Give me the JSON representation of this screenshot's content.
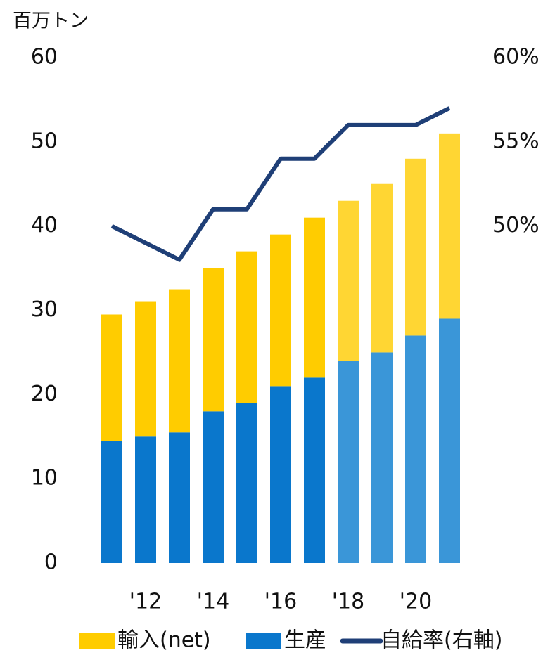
{
  "chart_data": {
    "type": "stacked-bar-line",
    "y_axis_label": "百万トン",
    "categories": [
      null,
      "'12",
      null,
      "'14",
      null,
      "'16",
      null,
      "'18",
      null,
      "'20",
      null
    ],
    "series": [
      {
        "name": "生産",
        "color": "#0a77cc",
        "colors": [
          "#0a77cc",
          "#0a77cc",
          "#0a77cc",
          "#0a77cc",
          "#0a77cc",
          "#0a77cc",
          "#0a77cc",
          "#3a96d8",
          "#3a96d8",
          "#3a96d8",
          "#3a96d8"
        ],
        "values": [
          14.5,
          15,
          15.5,
          18,
          19,
          21,
          22,
          24,
          25,
          27,
          29
        ]
      },
      {
        "name": "輸入(net)",
        "color": "#ffcc00",
        "colors": [
          "#ffcc00",
          "#ffcc00",
          "#ffcc00",
          "#ffcc00",
          "#ffcc00",
          "#ffcc00",
          "#ffcc00",
          "#ffd633",
          "#ffd633",
          "#ffd633",
          "#ffd633"
        ],
        "values": [
          15,
          16,
          17,
          17,
          18,
          18,
          19,
          19,
          20,
          21,
          22
        ]
      },
      {
        "name": "自給率(右軸)",
        "color": "#1f3f77",
        "axis": "y2",
        "values": [
          50,
          49,
          48,
          51,
          51,
          54,
          54,
          56,
          56,
          56,
          57
        ]
      }
    ],
    "ylim": [
      0,
      60
    ],
    "yticks": [
      0,
      10,
      20,
      30,
      40,
      50,
      60
    ],
    "y2lim": [
      30,
      60
    ],
    "y2ticks": [
      {
        "value": 50,
        "label": "50%"
      },
      {
        "value": 55,
        "label": "55%"
      },
      {
        "value": 60,
        "label": "60%"
      }
    ],
    "grid": false
  }
}
